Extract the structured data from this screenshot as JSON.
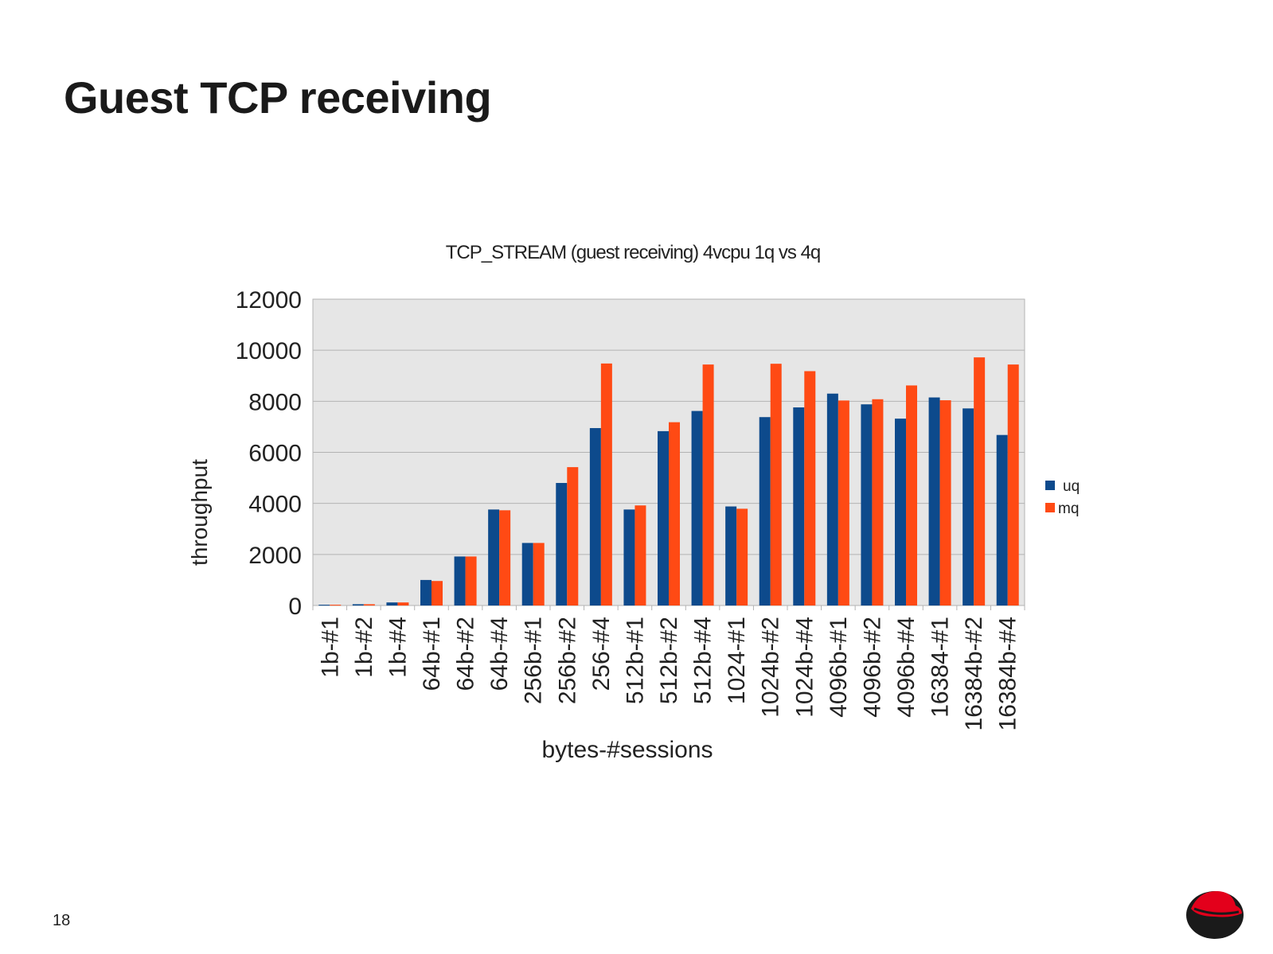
{
  "slide": {
    "title": "Guest TCP receiving",
    "page_number": "18"
  },
  "colors": {
    "uq": "#0d4a8c",
    "mq": "#ff4a14",
    "plot_bg": "#e6e6e6",
    "grid": "#b3b3b3"
  },
  "chart_data": {
    "type": "bar",
    "title": "TCP_STREAM (guest receiving) 4vcpu 1q vs 4q",
    "xlabel": "bytes-#sessions",
    "ylabel": "throughput",
    "ylim": [
      0,
      12000
    ],
    "yticks": [
      0,
      2000,
      4000,
      6000,
      8000,
      10000,
      12000
    ],
    "legend_position": "right",
    "categories": [
      "1b-#1",
      "1b-#2",
      "1b-#4",
      "64b-#1",
      "64b-#2",
      "64b-#4",
      "256b-#1",
      "256b-#2",
      "256-#4",
      "512b-#1",
      "512b-#2",
      "512b-#4",
      "1024-#1",
      "1024b-#2",
      "1024b-#4",
      "4096b-#1",
      "4096b-#2",
      "4096b-#4",
      "16384-#1",
      "16384b-#2",
      "16384b-#4"
    ],
    "series": [
      {
        "name": "uq",
        "values": [
          30,
          50,
          120,
          1000,
          1920,
          3760,
          2450,
          4800,
          6950,
          3760,
          6830,
          7620,
          3880,
          7380,
          7760,
          8300,
          7880,
          7320,
          8150,
          7720,
          6680
        ]
      },
      {
        "name": "mq",
        "values": [
          30,
          50,
          120,
          960,
          1920,
          3730,
          2450,
          5420,
          9480,
          3920,
          7180,
          9440,
          3790,
          9470,
          9180,
          8030,
          8080,
          8620,
          8040,
          9720,
          9440
        ]
      }
    ]
  }
}
